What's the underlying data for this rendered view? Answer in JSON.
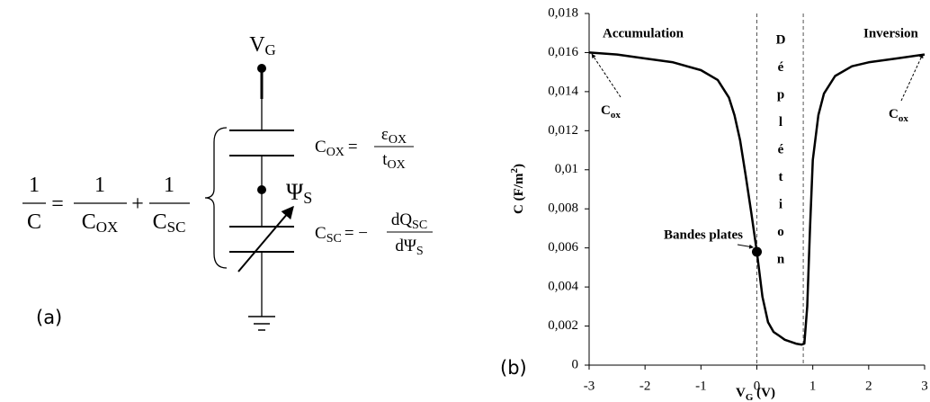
{
  "diagram": {
    "formula": {
      "lhs_num": "1",
      "lhs_den": "C",
      "eq": "=",
      "t1_num": "1",
      "t1_den": {
        "main": "C",
        "sub": "OX"
      },
      "plus": "+",
      "t2_num": "1",
      "t2_den": {
        "main": "C",
        "sub": "SC"
      }
    },
    "gate": {
      "main": "V",
      "sub": "G"
    },
    "surface": {
      "main": "Ψ",
      "sub": "S"
    },
    "cox_eq": {
      "lhs": {
        "main": "C",
        "sub": "OX"
      },
      "eq": "=",
      "num": {
        "main": "ε",
        "sub": "OX"
      },
      "den": {
        "main": "t",
        "sub": "OX"
      }
    },
    "csc_eq": {
      "lhs": {
        "main": "C",
        "sub": "SC"
      },
      "eq": "= −",
      "num": {
        "main": "dQ",
        "sub": "SC"
      },
      "den": {
        "main": "dΨ",
        "sub": "S"
      }
    },
    "label": "(a)"
  },
  "chart_data": {
    "type": "line",
    "panel_label": "(b)",
    "y_label": {
      "main": "C (F/m",
      "sup": "2",
      "rest": ")"
    },
    "x_label": {
      "main": "V",
      "sub": "G",
      "rest": " (V)"
    },
    "x": [
      -3,
      -2.5,
      -2,
      -1.5,
      -1,
      -0.7,
      -0.5,
      -0.4,
      -0.3,
      -0.2,
      -0.1,
      0,
      0.1,
      0.2,
      0.3,
      0.4,
      0.5,
      0.6,
      0.7,
      0.8,
      0.85,
      0.9,
      0.95,
      1.0,
      1.1,
      1.2,
      1.4,
      1.7,
      2,
      2.5,
      3
    ],
    "values": [
      0.016,
      0.0159,
      0.0157,
      0.0155,
      0.0151,
      0.0146,
      0.0137,
      0.0128,
      0.0115,
      0.0097,
      0.0078,
      0.0058,
      0.0035,
      0.0022,
      0.0017,
      0.0015,
      0.0013,
      0.0012,
      0.0011,
      0.00105,
      0.0011,
      0.003,
      0.007,
      0.0105,
      0.0128,
      0.0139,
      0.0148,
      0.0153,
      0.0155,
      0.0157,
      0.0159
    ],
    "color": "#000000",
    "xlim": [
      -3,
      3
    ],
    "xticks": [
      -3,
      -2,
      -1,
      0,
      1,
      2,
      3
    ],
    "ylim": [
      0,
      0.018
    ],
    "yticks": [
      0,
      {
        "value": 0.002,
        "label": "0,002"
      },
      {
        "value": 0.004,
        "label": "0,004"
      },
      {
        "value": 0.006,
        "label": "0,006"
      },
      {
        "value": 0.008,
        "label": "0,008"
      },
      {
        "value": 0.01,
        "label": "0,01"
      },
      {
        "value": 0.012,
        "label": "0,012"
      },
      {
        "value": 0.014,
        "label": "0,014"
      },
      {
        "value": 0.016,
        "label": "0,016"
      },
      {
        "value": 0.018,
        "label": "0,018"
      }
    ],
    "vlines": [
      0,
      0.83
    ],
    "point": {
      "x": 0,
      "y": 0.0058
    },
    "annotations": {
      "accumulation": "Accumulation",
      "inversion": "Inversion",
      "depletion": [
        "D",
        "é",
        "p",
        "l",
        "é",
        "t",
        "i",
        "o",
        "n"
      ],
      "cox_left": {
        "main": "C",
        "sub": "ox"
      },
      "cox_right": {
        "main": "C",
        "sub": "ox"
      },
      "flat_band": "Bandes plates"
    }
  }
}
